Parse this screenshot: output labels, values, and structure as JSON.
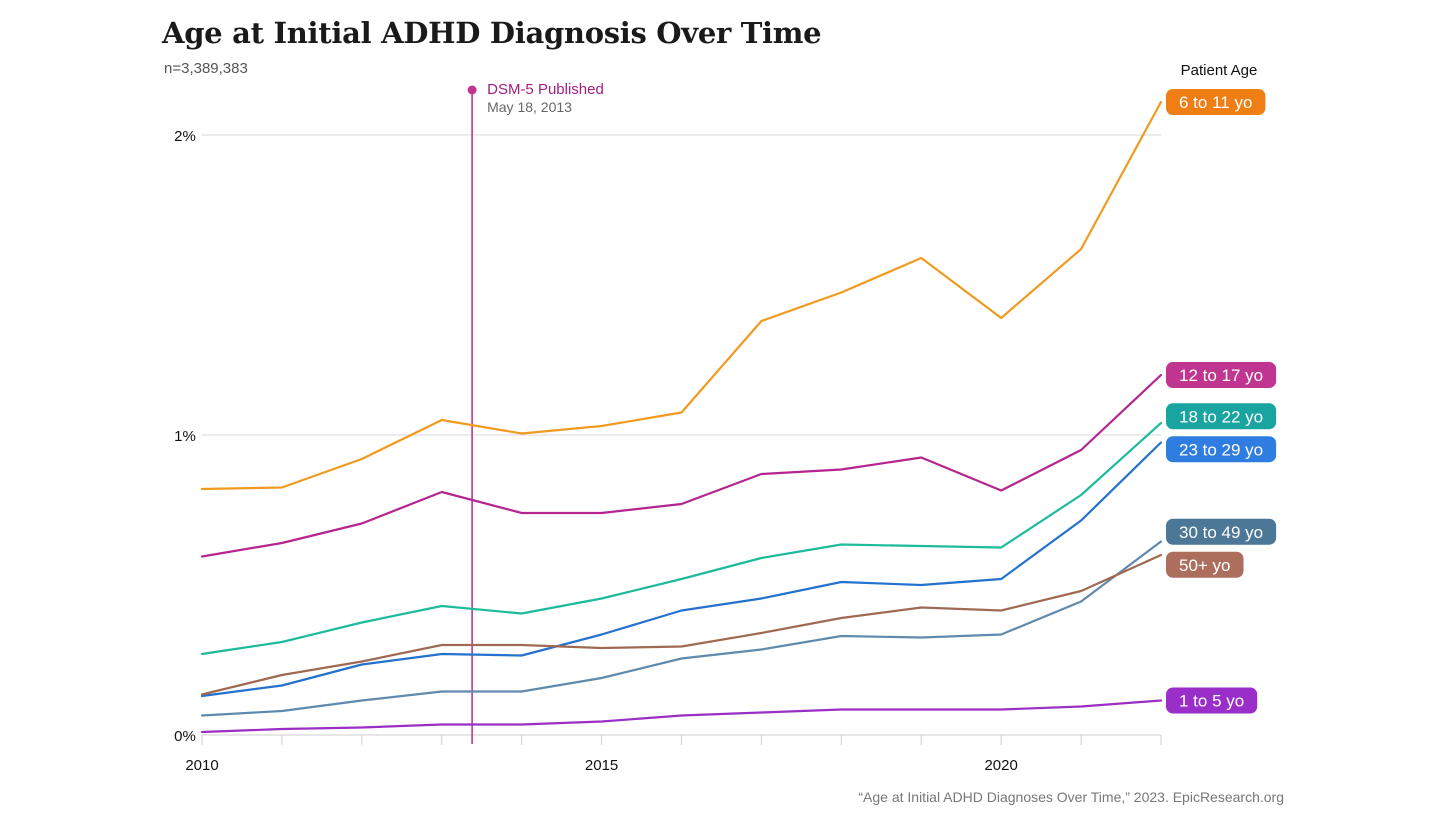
{
  "title": "Age at Initial ADHD Diagnosis Over Time",
  "subtitle": "n=3,389,383",
  "source": "“Age at Initial ADHD Diagnoses Over Time,” 2023. EpicResearch.org",
  "chart_data": {
    "type": "line",
    "title": "Age at Initial ADHD Diagnosis Over Time",
    "subtitle": "n=3,389,383",
    "xlabel": "",
    "ylabel": "",
    "x": [
      2010,
      2011,
      2012,
      2013,
      2014,
      2015,
      2016,
      2017,
      2018,
      2019,
      2020,
      2021,
      2022
    ],
    "x_tick_labels": [
      "2010",
      "2015",
      "2020"
    ],
    "y_tick_labels": [
      "0%",
      "1%",
      "2%"
    ],
    "ylim": [
      0,
      2.0
    ],
    "y_unit": "percent",
    "grid": "horizontal",
    "legend_title": "Patient Age",
    "legend_placement": "right, labels at line ends",
    "series": [
      {
        "name": "6 to 11 yo",
        "color": "#f09a1f",
        "values": [
          0.82,
          0.825,
          0.92,
          1.05,
          1.005,
          1.03,
          1.075,
          1.38,
          1.475,
          1.59,
          1.39,
          1.62,
          2.11
        ]
      },
      {
        "name": "12 to 17 yo",
        "color": "#b5258f",
        "values": [
          0.595,
          0.64,
          0.705,
          0.81,
          0.74,
          0.74,
          0.77,
          0.87,
          0.885,
          0.925,
          0.815,
          0.95,
          1.2
        ]
      },
      {
        "name": "18 to 22 yo",
        "color": "#1dbb9c",
        "values": [
          0.27,
          0.31,
          0.375,
          0.43,
          0.405,
          0.455,
          0.52,
          0.59,
          0.635,
          0.63,
          0.625,
          0.8,
          1.04
        ]
      },
      {
        "name": "23 to 29 yo",
        "color": "#2472cd",
        "values": [
          0.13,
          0.165,
          0.235,
          0.27,
          0.265,
          0.335,
          0.415,
          0.455,
          0.51,
          0.5,
          0.52,
          0.715,
          0.975
        ]
      },
      {
        "name": "30 to 49 yo",
        "color": "#5f8aad",
        "values": [
          0.065,
          0.08,
          0.115,
          0.145,
          0.145,
          0.19,
          0.255,
          0.285,
          0.33,
          0.325,
          0.335,
          0.445,
          0.645
        ]
      },
      {
        "name": "50+ yo",
        "color": "#a06a52",
        "values": [
          0.135,
          0.2,
          0.245,
          0.3,
          0.3,
          0.29,
          0.295,
          0.34,
          0.39,
          0.425,
          0.415,
          0.48,
          0.6
        ]
      },
      {
        "name": "1 to 5 yo",
        "color": "#9b2ec4",
        "values": [
          0.01,
          0.02,
          0.025,
          0.035,
          0.035,
          0.045,
          0.065,
          0.075,
          0.085,
          0.085,
          0.085,
          0.095,
          0.115
        ]
      }
    ],
    "legend_colors": {
      "6 to 11 yo": "#ef7f14",
      "12 to 17 yo": "#c0358f",
      "18 to 22 yo": "#1aa4a0",
      "23 to 29 yo": "#2f7de1",
      "30 to 49 yo": "#4c7797",
      "50+ yo": "#ac6f5d",
      "1 to 5 yo": "#9a2ec9"
    },
    "annotations": [
      {
        "label": "DSM-5 Published",
        "date_text": "May 18, 2013",
        "x": 2013.38,
        "color": "#c0358f"
      }
    ]
  }
}
